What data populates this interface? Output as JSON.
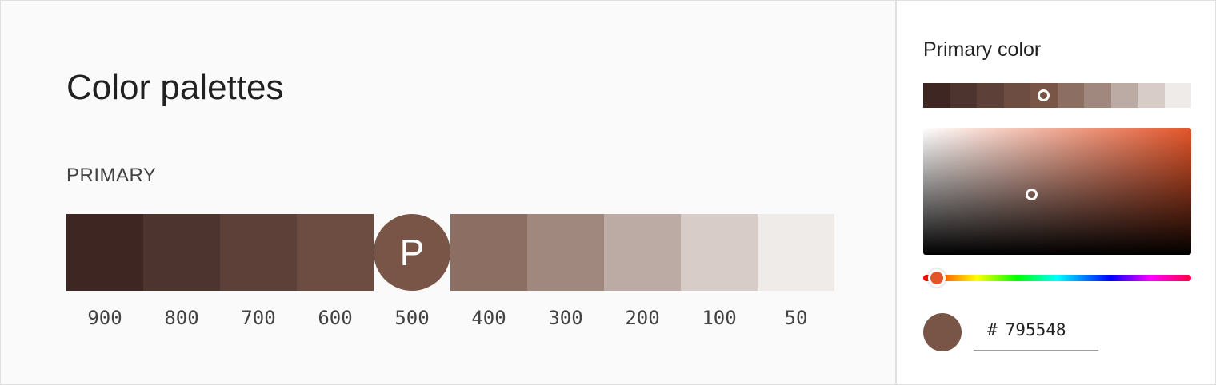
{
  "page": {
    "title": "Color palettes",
    "section_label": "PRIMARY"
  },
  "palette": {
    "primary_letter": "P",
    "swatches": [
      {
        "shade": "900",
        "color": "#3e2723"
      },
      {
        "shade": "800",
        "color": "#4e342e"
      },
      {
        "shade": "700",
        "color": "#5d4037"
      },
      {
        "shade": "600",
        "color": "#6d4c41"
      },
      {
        "shade": "500",
        "color": "#795548",
        "primary": true
      },
      {
        "shade": "400",
        "color": "#8d6e63"
      },
      {
        "shade": "300",
        "color": "#a1887f"
      },
      {
        "shade": "200",
        "color": "#bcaaa4"
      },
      {
        "shade": "100",
        "color": "#d7ccc8"
      },
      {
        "shade": "50",
        "color": "#efebe9"
      }
    ]
  },
  "picker": {
    "title": "Primary color",
    "hex_prefix": "#",
    "hex_value": "795548",
    "preview_color": "#795548",
    "hue_color": "#e4552a"
  }
}
